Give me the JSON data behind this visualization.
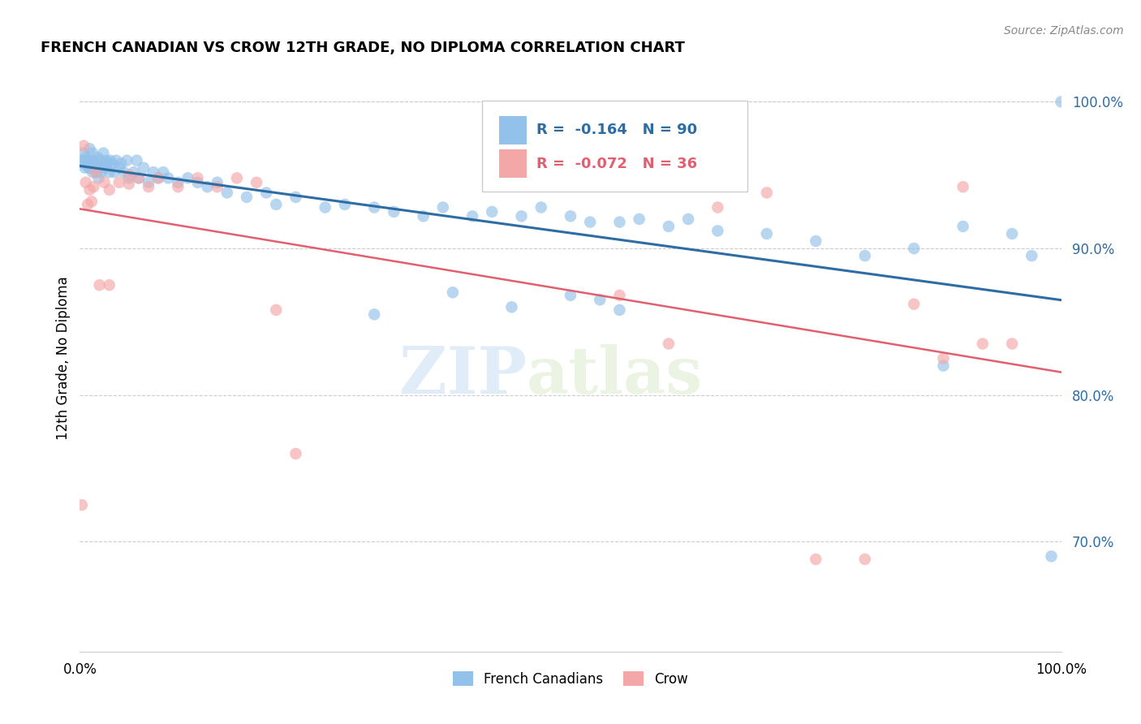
{
  "title": "FRENCH CANADIAN VS CROW 12TH GRADE, NO DIPLOMA CORRELATION CHART",
  "source": "Source: ZipAtlas.com",
  "ylabel": "12th Grade, No Diploma",
  "legend_label1": "French Canadians",
  "legend_label2": "Crow",
  "r1": "-0.164",
  "n1": "90",
  "r2": "-0.072",
  "n2": "36",
  "color_blue": "#92c1e9",
  "color_pink": "#f4a7a7",
  "color_blue_line": "#2e6da4",
  "color_pink_line": "#e06070",
  "color_blue_text": "#2e6da4",
  "color_pink_text": "#e06070",
  "watermark_zip": "ZIP",
  "watermark_atlas": "atlas",
  "xlim": [
    0.0,
    1.0
  ],
  "ylim": [
    0.625,
    1.025
  ],
  "yticks": [
    0.7,
    0.8,
    0.9,
    1.0
  ],
  "ytick_labels": [
    "70.0%",
    "80.0%",
    "90.0%",
    "100.0%"
  ],
  "blue_x": [
    0.002,
    0.003,
    0.004,
    0.005,
    0.006,
    0.007,
    0.008,
    0.009,
    0.01,
    0.01,
    0.011,
    0.012,
    0.013,
    0.013,
    0.014,
    0.015,
    0.016,
    0.017,
    0.018,
    0.019,
    0.02,
    0.021,
    0.022,
    0.024,
    0.025,
    0.026,
    0.027,
    0.028,
    0.03,
    0.031,
    0.033,
    0.035,
    0.037,
    0.04,
    0.042,
    0.045,
    0.048,
    0.05,
    0.055,
    0.058,
    0.06,
    0.065,
    0.07,
    0.075,
    0.08,
    0.085,
    0.09,
    0.1,
    0.11,
    0.12,
    0.13,
    0.14,
    0.15,
    0.17,
    0.19,
    0.2,
    0.22,
    0.25,
    0.27,
    0.3,
    0.32,
    0.35,
    0.37,
    0.4,
    0.42,
    0.45,
    0.47,
    0.5,
    0.52,
    0.55,
    0.57,
    0.6,
    0.62,
    0.65,
    0.3,
    0.38,
    0.44,
    0.5,
    0.53,
    0.55,
    0.7,
    0.75,
    0.8,
    0.85,
    0.88,
    0.9,
    0.95,
    0.97,
    0.99,
    1.0
  ],
  "blue_y": [
    0.96,
    0.965,
    0.958,
    0.955,
    0.962,
    0.96,
    0.958,
    0.955,
    0.968,
    0.955,
    0.958,
    0.96,
    0.952,
    0.965,
    0.96,
    0.955,
    0.958,
    0.952,
    0.962,
    0.948,
    0.955,
    0.96,
    0.952,
    0.965,
    0.958,
    0.955,
    0.96,
    0.958,
    0.952,
    0.96,
    0.958,
    0.952,
    0.96,
    0.955,
    0.958,
    0.952,
    0.96,
    0.948,
    0.952,
    0.96,
    0.948,
    0.955,
    0.945,
    0.952,
    0.948,
    0.952,
    0.948,
    0.945,
    0.948,
    0.945,
    0.942,
    0.945,
    0.938,
    0.935,
    0.938,
    0.93,
    0.935,
    0.928,
    0.93,
    0.928,
    0.925,
    0.922,
    0.928,
    0.922,
    0.925,
    0.922,
    0.928,
    0.922,
    0.918,
    0.918,
    0.92,
    0.915,
    0.92,
    0.912,
    0.855,
    0.87,
    0.86,
    0.868,
    0.865,
    0.858,
    0.91,
    0.905,
    0.895,
    0.9,
    0.82,
    0.915,
    0.91,
    0.895,
    0.69,
    1.0
  ],
  "pink_x": [
    0.002,
    0.004,
    0.006,
    0.008,
    0.01,
    0.012,
    0.014,
    0.016,
    0.02,
    0.025,
    0.03,
    0.04,
    0.05,
    0.06,
    0.07,
    0.08,
    0.1,
    0.12,
    0.14,
    0.16,
    0.2,
    0.22,
    0.03,
    0.05,
    0.18,
    0.55,
    0.6,
    0.65,
    0.7,
    0.75,
    0.8,
    0.85,
    0.88,
    0.9,
    0.92,
    0.95
  ],
  "pink_y": [
    0.725,
    0.97,
    0.945,
    0.93,
    0.94,
    0.932,
    0.942,
    0.952,
    0.875,
    0.945,
    0.875,
    0.945,
    0.95,
    0.948,
    0.942,
    0.948,
    0.942,
    0.948,
    0.942,
    0.948,
    0.858,
    0.76,
    0.94,
    0.944,
    0.945,
    0.868,
    0.835,
    0.928,
    0.938,
    0.688,
    0.688,
    0.862,
    0.825,
    0.942,
    0.835,
    0.835
  ]
}
